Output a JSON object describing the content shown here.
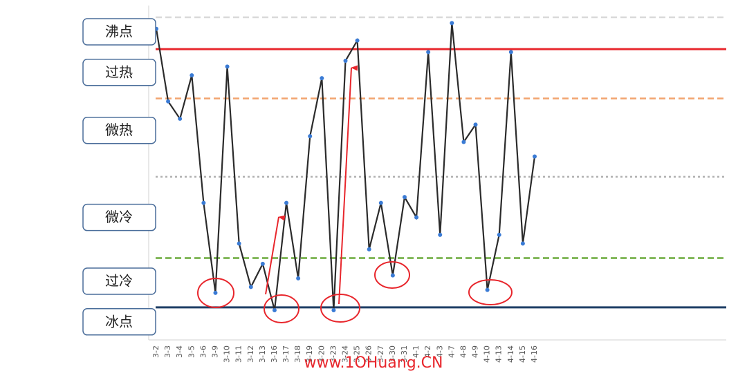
{
  "chart_data": {
    "type": "line",
    "categories": [
      "3-2",
      "3-3",
      "3-4",
      "3-5",
      "3-6",
      "3-9",
      "3-10",
      "3-11",
      "3-12",
      "3-13",
      "3-16",
      "3-17",
      "3-18",
      "3-19",
      "3-20",
      "3-23",
      "3-24",
      "3-25",
      "3-26",
      "3-27",
      "3-30",
      "3-31",
      "4-1",
      "4-2",
      "4-3",
      "4-7",
      "4-8",
      "4-9",
      "4-10",
      "4-13",
      "4-14",
      "4-15",
      "4-16"
    ],
    "values": [
      96,
      71,
      65,
      80,
      36,
      5,
      83,
      22,
      7,
      15,
      -1,
      36,
      10,
      59,
      79,
      -1,
      85,
      92,
      20,
      36,
      11,
      38,
      31,
      88,
      25,
      98,
      57,
      63,
      6,
      25,
      88,
      22,
      52
    ],
    "color": "#2b2b2b",
    "marker_color": "#3a7bd5",
    "ylim": [
      -11,
      100
    ],
    "yticks": [
      {
        "value": 95,
        "label": "沸点"
      },
      {
        "value": 81,
        "label": "过热"
      },
      {
        "value": 61,
        "label": "微热"
      },
      {
        "value": 31,
        "label": "微冷"
      },
      {
        "value": 9,
        "label": "过冷"
      },
      {
        "value": -5,
        "label": "冰点"
      }
    ],
    "reference_lines": [
      {
        "value": 100,
        "color": "#d9d9d9",
        "style": "dashed"
      },
      {
        "value": 89,
        "color": "#e8262c",
        "style": "solid"
      },
      {
        "value": 72,
        "color": "#f2a46f",
        "style": "dashed"
      },
      {
        "value": 45,
        "color": "#b0b0b0",
        "style": "dotted"
      },
      {
        "value": 17,
        "color": "#6aaa3a",
        "style": "dashed"
      },
      {
        "value": 0,
        "color": "#1f3f66",
        "style": "solid"
      }
    ],
    "watermark": "www.1OHuang.CN"
  }
}
